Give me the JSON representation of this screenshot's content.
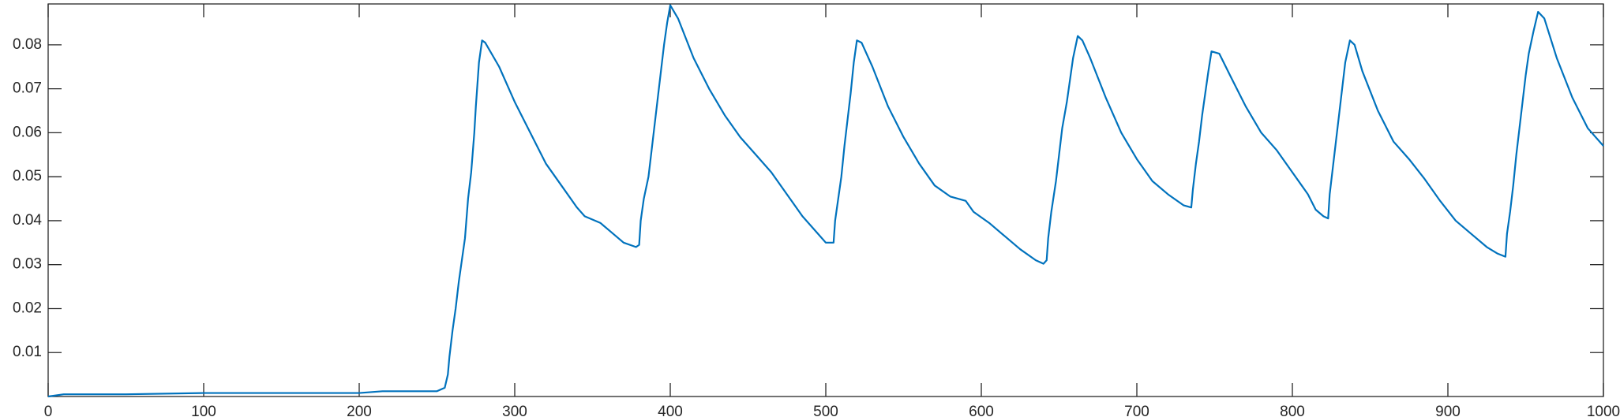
{
  "chart_data": {
    "type": "line",
    "x": [
      0,
      10,
      50,
      100,
      150,
      200,
      215,
      250,
      255,
      257,
      258,
      260,
      262,
      264,
      266,
      268,
      270,
      272,
      274,
      275,
      277,
      279,
      281,
      290,
      300,
      310,
      320,
      330,
      340,
      345,
      355,
      360,
      370,
      378,
      380,
      381,
      383,
      386,
      388,
      390,
      392,
      394,
      396,
      398,
      400,
      405,
      415,
      425,
      435,
      445,
      455,
      465,
      475,
      485,
      495,
      500,
      505,
      506,
      508,
      510,
      512,
      514,
      516,
      518,
      520,
      523,
      530,
      540,
      550,
      560,
      570,
      580,
      590,
      595,
      605,
      615,
      625,
      635,
      640,
      642,
      643,
      645,
      648,
      650,
      652,
      655,
      657,
      659,
      662,
      665,
      670,
      680,
      690,
      700,
      710,
      720,
      730,
      735,
      736,
      738,
      740,
      742,
      744,
      746,
      748,
      753,
      760,
      770,
      780,
      790,
      800,
      810,
      815,
      820,
      823,
      824,
      826,
      828,
      830,
      832,
      834,
      837,
      840,
      845,
      855,
      865,
      875,
      885,
      895,
      905,
      915,
      925,
      932,
      937,
      938,
      940,
      942,
      944,
      946,
      948,
      950,
      952,
      955,
      958,
      962,
      970,
      980,
      990,
      1000
    ],
    "series": [
      {
        "color": "#0072bd",
        "values": [
          0,
          0.0005,
          0.0005,
          0.0008,
          0.0008,
          0.0008,
          0.0012,
          0.0012,
          0.002,
          0.005,
          0.009,
          0.015,
          0.02,
          0.026,
          0.031,
          0.036,
          0.045,
          0.051,
          0.06,
          0.066,
          0.076,
          0.081,
          0.0805,
          0.075,
          0.067,
          0.06,
          0.053,
          0.048,
          0.043,
          0.041,
          0.0395,
          0.038,
          0.035,
          0.034,
          0.0345,
          0.04,
          0.045,
          0.05,
          0.056,
          0.062,
          0.068,
          0.074,
          0.08,
          0.085,
          0.089,
          0.086,
          0.077,
          0.07,
          0.064,
          0.059,
          0.055,
          0.051,
          0.046,
          0.041,
          0.037,
          0.035,
          0.035,
          0.04,
          0.045,
          0.05,
          0.057,
          0.063,
          0.069,
          0.076,
          0.081,
          0.0805,
          0.075,
          0.066,
          0.059,
          0.053,
          0.048,
          0.0455,
          0.0445,
          0.042,
          0.0395,
          0.0365,
          0.0335,
          0.031,
          0.0302,
          0.031,
          0.036,
          0.042,
          0.049,
          0.055,
          0.061,
          0.067,
          0.072,
          0.077,
          0.082,
          0.081,
          0.077,
          0.068,
          0.06,
          0.054,
          0.049,
          0.046,
          0.0435,
          0.043,
          0.047,
          0.053,
          0.058,
          0.064,
          0.069,
          0.074,
          0.0785,
          0.078,
          0.073,
          0.066,
          0.06,
          0.056,
          0.051,
          0.046,
          0.0425,
          0.041,
          0.0405,
          0.046,
          0.052,
          0.058,
          0.064,
          0.07,
          0.076,
          0.081,
          0.08,
          0.074,
          0.065,
          0.058,
          0.054,
          0.0495,
          0.0445,
          0.04,
          0.037,
          0.034,
          0.0325,
          0.0318,
          0.037,
          0.042,
          0.048,
          0.055,
          0.061,
          0.067,
          0.073,
          0.078,
          0.083,
          0.0875,
          0.086,
          0.077,
          0.068,
          0.061,
          0.057
        ]
      }
    ],
    "xlim": [
      0,
      1000
    ],
    "xticks": [
      0,
      100,
      200,
      300,
      400,
      500,
      600,
      700,
      800,
      900,
      1000
    ],
    "ylim": [
      0,
      0.0893
    ],
    "yticks": [
      0.01,
      0.02,
      0.03,
      0.04,
      0.05,
      0.06,
      0.07,
      0.08
    ]
  }
}
